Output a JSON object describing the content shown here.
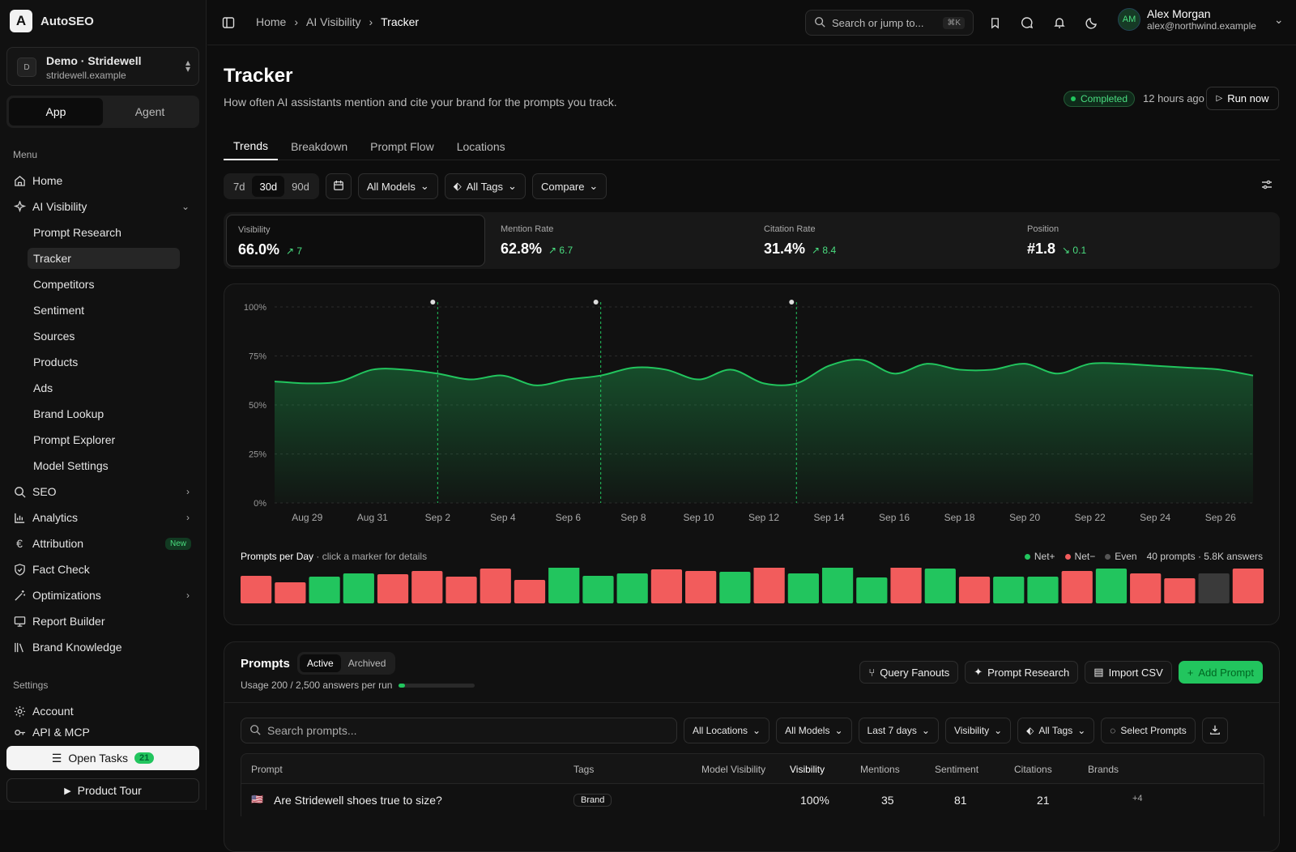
{
  "app": {
    "name": "AutoSEO"
  },
  "workspace": {
    "avatar": "D",
    "name": "Demo · Stridewell",
    "domain": "stridewell.example"
  },
  "mode": {
    "app": "App",
    "agent": "Agent"
  },
  "sidebar": {
    "menu_label": "Menu",
    "items": [
      {
        "label": "Home",
        "icon": "home-icon"
      },
      {
        "label": "AI Visibility",
        "icon": "sparkle-icon"
      },
      {
        "label": "SEO",
        "icon": "search-icon"
      },
      {
        "label": "Analytics",
        "icon": "bar-chart-icon"
      },
      {
        "label": "Attribution",
        "icon": "euro-icon",
        "badge": "New"
      },
      {
        "label": "Fact Check",
        "icon": "shield-check-icon"
      },
      {
        "label": "Optimizations",
        "icon": "wand-icon"
      },
      {
        "label": "Report Builder",
        "icon": "monitor-icon"
      },
      {
        "label": "Brand Knowledge",
        "icon": "library-icon"
      }
    ],
    "sub_items": [
      "Prompt Research",
      "Tracker",
      "Competitors",
      "Sentiment",
      "Sources",
      "Products",
      "Ads",
      "Brand Lookup",
      "Prompt Explorer",
      "Model Settings"
    ],
    "settings_label": "Settings",
    "settings_items": [
      {
        "label": "Account"
      },
      {
        "label": "API & MCP"
      }
    ],
    "open_tasks": {
      "label": "Open Tasks",
      "count": "21"
    },
    "product_tour": "Product Tour"
  },
  "topbar": {
    "breadcrumbs": [
      "Home",
      "AI Visibility",
      "Tracker"
    ],
    "search_placeholder": "Search or jump to...",
    "shortcut": "⌘K",
    "user": {
      "initials": "AM",
      "name": "Alex Morgan",
      "email": "alex@northwind.example"
    }
  },
  "page": {
    "title": "Tracker",
    "description": "How often AI assistants mention and cite your brand for the prompts you track.",
    "status": "Completed",
    "last_run": "12 hours ago",
    "run_now": "Run now",
    "tabs": [
      "Trends",
      "Breakdown",
      "Prompt Flow",
      "Locations"
    ]
  },
  "filters": {
    "ranges": [
      "7d",
      "30d",
      "90d"
    ],
    "selected_range": "30d",
    "models": "All Models",
    "tags": "All Tags",
    "compare": "Compare"
  },
  "kpis": [
    {
      "label": "Visibility",
      "value": "66.0%",
      "delta": "↗ 7"
    },
    {
      "label": "Mention Rate",
      "value": "62.8%",
      "delta": "↗ 6.7"
    },
    {
      "label": "Citation Rate",
      "value": "31.4%",
      "delta": "↗ 8.4"
    },
    {
      "label": "Position",
      "value": "#1.8",
      "delta": "↘ 0.1"
    }
  ],
  "colors": {
    "accent": "#22c55e",
    "negative": "#f25c5c",
    "neutral": "#3a3a3a"
  },
  "chart_data": [
    {
      "type": "area",
      "yticks": [
        "100%",
        "75%",
        "50%",
        "25%",
        "0%"
      ],
      "ylim": [
        0,
        100
      ],
      "xticks": [
        "Aug 29",
        "Aug 31",
        "Sep 2",
        "Sep 4",
        "Sep 6",
        "Sep 8",
        "Sep 10",
        "Sep 12",
        "Sep 14",
        "Sep 16",
        "Sep 18",
        "Sep 20",
        "Sep 22",
        "Sep 24",
        "Sep 26"
      ],
      "x": [
        "Aug 28",
        "Aug 29",
        "Aug 30",
        "Aug 31",
        "Sep 1",
        "Sep 2",
        "Sep 3",
        "Sep 4",
        "Sep 5",
        "Sep 6",
        "Sep 7",
        "Sep 8",
        "Sep 9",
        "Sep 10",
        "Sep 11",
        "Sep 12",
        "Sep 13",
        "Sep 14",
        "Sep 15",
        "Sep 16",
        "Sep 17",
        "Sep 18",
        "Sep 19",
        "Sep 20",
        "Sep 21",
        "Sep 22",
        "Sep 23",
        "Sep 24",
        "Sep 25",
        "Sep 26",
        "Sep 27"
      ],
      "values": [
        62,
        61,
        62,
        68,
        68,
        66,
        63,
        65,
        60,
        63,
        65,
        69,
        68,
        63,
        68,
        61,
        61,
        70,
        73,
        66,
        71,
        68,
        68,
        71,
        66,
        71,
        71,
        70,
        69,
        68,
        65
      ],
      "markers": [
        "Sep 2",
        "Sep 7",
        "Sep 13"
      ],
      "grid": true
    },
    {
      "type": "bar",
      "title": "Prompts per Day",
      "hint": "· click a marker for details",
      "legend": [
        "Net+",
        "Net−",
        "Even"
      ],
      "summary": "40 prompts · 5.8K answers",
      "values": [
        34,
        26,
        33,
        37,
        36,
        40,
        33,
        43,
        29,
        46,
        34,
        37,
        42,
        40,
        39,
        48,
        37,
        46,
        32,
        46,
        43,
        33,
        33,
        33,
        40,
        43,
        37,
        31,
        37,
        43
      ],
      "status": [
        "neg",
        "neg",
        "pos",
        "pos",
        "neg",
        "neg",
        "neg",
        "neg",
        "neg",
        "pos",
        "pos",
        "pos",
        "neg",
        "neg",
        "pos",
        "neg",
        "pos",
        "pos",
        "pos",
        "neg",
        "pos",
        "neg",
        "pos",
        "pos",
        "neg",
        "pos",
        "neg",
        "neg",
        "even",
        "neg"
      ]
    }
  ],
  "prompts": {
    "title": "Prompts",
    "tabs": [
      "Active",
      "Archived"
    ],
    "usage": "Usage 200 / 2,500 answers per run",
    "usage_fraction": 0.08,
    "actions": [
      "Query Fanouts",
      "Prompt Research",
      "Import CSV",
      "Add Prompt"
    ],
    "search_placeholder": "Search prompts...",
    "filters": [
      "All Locations",
      "All Models",
      "Last 7 days",
      "Visibility",
      "All Tags",
      "Select Prompts"
    ],
    "columns": [
      "Prompt",
      "Tags",
      "Model Visibility",
      "Visibility",
      "Mentions",
      "Sentiment",
      "Citations",
      "Brands"
    ],
    "rows": [
      {
        "flag": "🇺🇸",
        "prompt": "Are Stridewell shoes true to size?",
        "tag": "Brand",
        "visibility": "100%",
        "mentions": "35",
        "sentiment": "81",
        "citations": "21",
        "brands": "+4"
      }
    ]
  }
}
